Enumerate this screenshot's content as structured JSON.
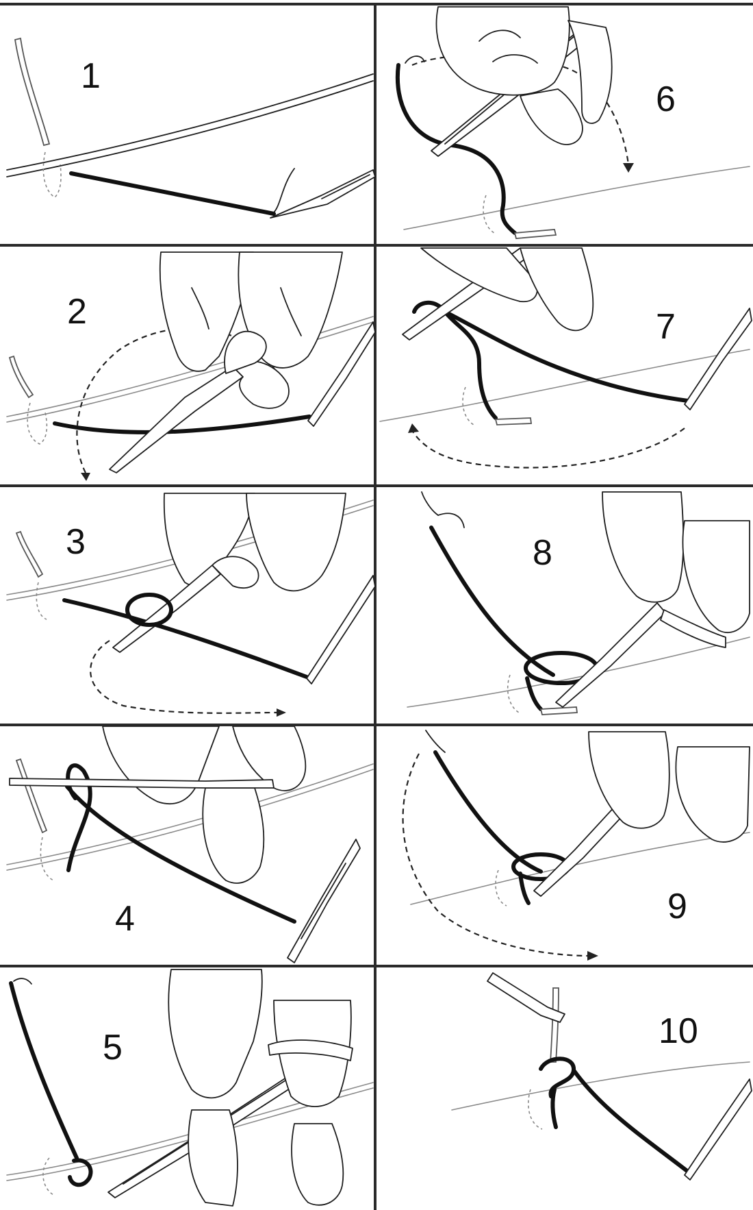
{
  "panels": [
    {
      "number": "1"
    },
    {
      "number": "2"
    },
    {
      "number": "3"
    },
    {
      "number": "4"
    },
    {
      "number": "5"
    },
    {
      "number": "6"
    },
    {
      "number": "7"
    },
    {
      "number": "8"
    },
    {
      "number": "9"
    },
    {
      "number": "10"
    }
  ],
  "colors": {
    "suture": "#111111",
    "line": "#1e1e1e",
    "background": "#ffffff"
  }
}
